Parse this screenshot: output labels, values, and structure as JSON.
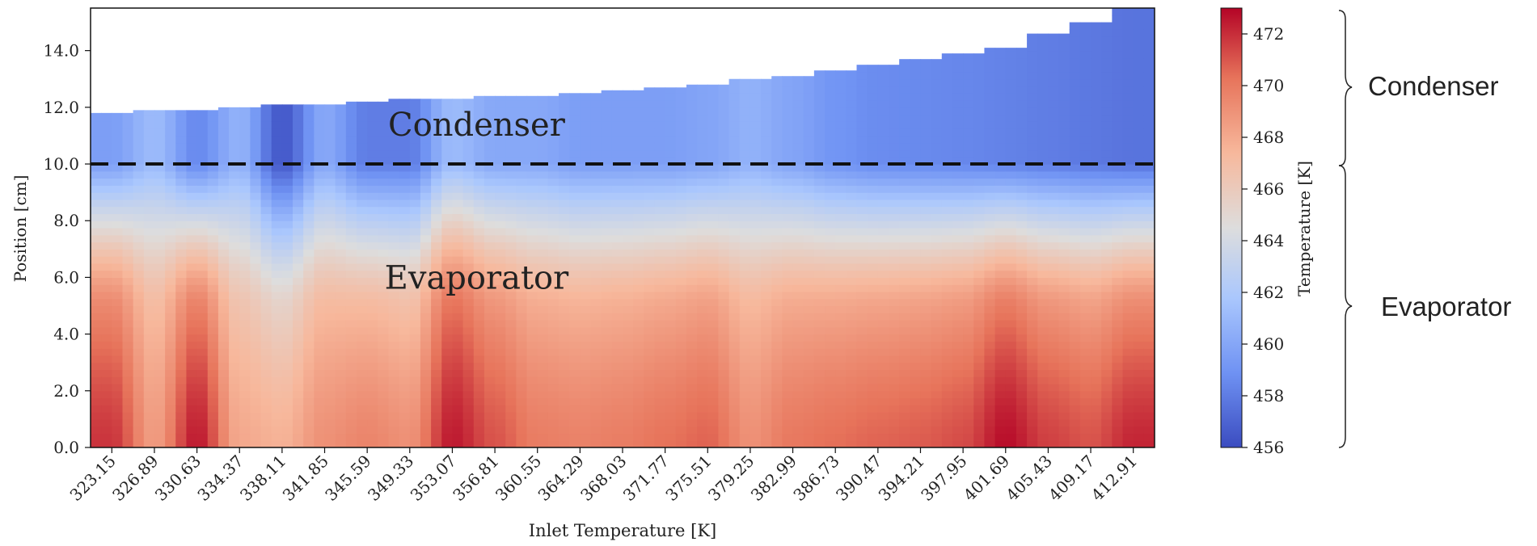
{
  "chart_data": {
    "type": "heatmap",
    "title": "",
    "xlabel": "Inlet Temperature [K]",
    "ylabel": "Position [cm]",
    "colorbar_label": "Temperature [K]",
    "x": [
      323.15,
      326.89,
      330.63,
      334.37,
      338.11,
      341.85,
      345.59,
      349.33,
      353.07,
      356.81,
      360.55,
      364.29,
      368.03,
      371.77,
      375.51,
      379.25,
      382.99,
      386.73,
      390.47,
      394.21,
      397.95,
      401.69,
      405.43,
      409.17,
      412.91
    ],
    "x_tick_labels": [
      "323.15",
      "326.89",
      "330.63",
      "334.37",
      "338.11",
      "341.85",
      "345.59",
      "349.33",
      "353.07",
      "356.81",
      "360.55",
      "364.29",
      "368.03",
      "371.77",
      "375.51",
      "379.25",
      "382.99",
      "386.73",
      "390.47",
      "394.21",
      "397.95",
      "401.69",
      "405.43",
      "409.17",
      "412.91"
    ],
    "y_ticks": [
      0.0,
      2.0,
      4.0,
      6.0,
      8.0,
      10.0,
      12.0,
      14.0
    ],
    "y_tick_labels": [
      "0.0",
      "2.0",
      "4.0",
      "6.0",
      "8.0",
      "10.0",
      "12.0",
      "14.0"
    ],
    "ylim": [
      0,
      15.5
    ],
    "column_top_positions": [
      11.8,
      11.9,
      11.9,
      12.0,
      12.1,
      12.1,
      12.2,
      12.3,
      12.3,
      12.4,
      12.4,
      12.5,
      12.6,
      12.7,
      12.8,
      13.0,
      13.1,
      13.3,
      13.5,
      13.7,
      13.9,
      14.1,
      14.6,
      15.0,
      15.5
    ],
    "evaporator_peak_temperature": [
      471.8,
      468.5,
      472.5,
      468.0,
      467.6,
      469.0,
      469.5,
      469.0,
      472.5,
      471.0,
      469.8,
      469.6,
      469.8,
      470.2,
      470.6,
      469.0,
      470.0,
      470.3,
      470.6,
      470.8,
      471.2,
      472.8,
      471.5,
      471.0,
      472.2
    ],
    "condenser_temperature": [
      459.5,
      461.0,
      458.5,
      460.5,
      456.5,
      460.0,
      458.0,
      458.0,
      461.0,
      460.0,
      460.0,
      459.5,
      459.5,
      459.5,
      459.8,
      460.5,
      459.8,
      459.0,
      458.6,
      458.5,
      458.4,
      458.2,
      458.0,
      457.8,
      457.6
    ],
    "boundary_position": 10.0,
    "boundary_style": "dashed black line",
    "colorbar": {
      "range": [
        456,
        473
      ],
      "ticks": [
        456,
        458,
        460,
        462,
        464,
        466,
        468,
        470,
        472
      ],
      "tick_labels": [
        "456",
        "458",
        "460",
        "462",
        "464",
        "466",
        "468",
        "470",
        "472"
      ],
      "colormap": "coolwarm",
      "colors": [
        "#3b4cc0",
        "#6f92f3",
        "#aac7fd",
        "#dddddd",
        "#f7b89c",
        "#e7745b",
        "#b40426"
      ]
    },
    "annotations": [
      {
        "text": "Condenser",
        "at_x": 353.07,
        "at_y": 11.4
      },
      {
        "text": "Evaporator",
        "at_x": 353.07,
        "at_y": 6.0
      }
    ],
    "side_labels": [
      "Condenser",
      "Evaporator"
    ]
  }
}
